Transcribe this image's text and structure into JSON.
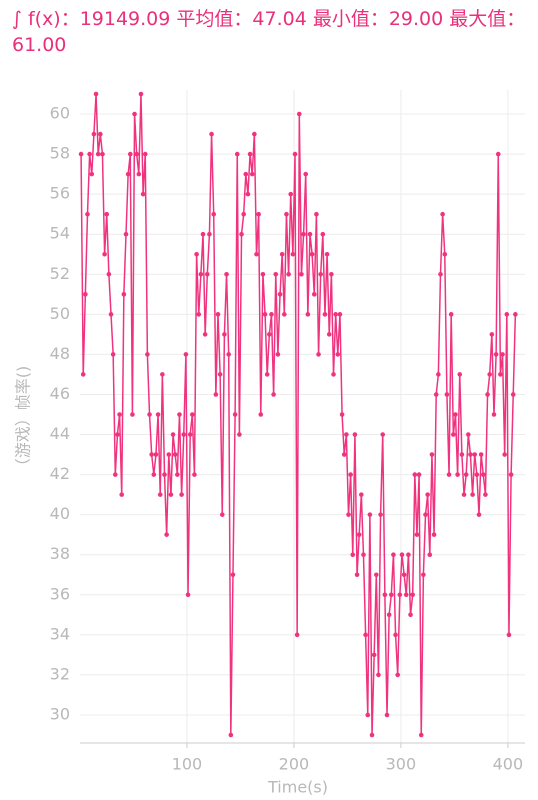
{
  "chart_data": {
    "type": "line",
    "title": "∫ f(x)：19149.09  平均值：47.04  最小值：29.00  最大值：61.00",
    "x_label": "Time(s)",
    "y_label": "（游戏）帧率()",
    "grid": true,
    "series": [
      {
        "name": "（游戏）帧率",
        "color": "#f0337f",
        "x": [
          1,
          3,
          5,
          7,
          9,
          11,
          13,
          15,
          17,
          19,
          21,
          23,
          25,
          27,
          29,
          31,
          33,
          35,
          37,
          39,
          41,
          43,
          45,
          47,
          49,
          51,
          53,
          55,
          57,
          59,
          61,
          63,
          65,
          67,
          69,
          71,
          73,
          75,
          77,
          79,
          81,
          83,
          85,
          87,
          89,
          91,
          93,
          95,
          97,
          99,
          101,
          103,
          105,
          107,
          109,
          111,
          113,
          115,
          117,
          119,
          121,
          123,
          125,
          127,
          129,
          131,
          133,
          135,
          137,
          139,
          141,
          143,
          145,
          147,
          149,
          151,
          153,
          155,
          157,
          159,
          161,
          163,
          165,
          167,
          169,
          171,
          173,
          175,
          177,
          179,
          181,
          183,
          185,
          187,
          189,
          191,
          193,
          195,
          197,
          199,
          201,
          203,
          205,
          207,
          209,
          211,
          213,
          215,
          217,
          219,
          221,
          223,
          225,
          227,
          229,
          231,
          233,
          235,
          237,
          239,
          241,
          243,
          245,
          247,
          249,
          251,
          253,
          255,
          257,
          259,
          261,
          263,
          265,
          267,
          269,
          271,
          273,
          275,
          277,
          279,
          281,
          283,
          285,
          287,
          289,
          291,
          293,
          295,
          297,
          299,
          301,
          303,
          305,
          307,
          309,
          311,
          313,
          315,
          317,
          319,
          321,
          323,
          325,
          327,
          329,
          331,
          333,
          335,
          337,
          339,
          341,
          343,
          345,
          347,
          349,
          351,
          353,
          355,
          357,
          359,
          361,
          363,
          365,
          367,
          369,
          371,
          373,
          375,
          377,
          379,
          381,
          383,
          385,
          387,
          389,
          391,
          393,
          395,
          397,
          399,
          401,
          403,
          405,
          407
        ],
        "values": [
          58,
          47,
          51,
          55,
          58,
          57,
          59,
          61,
          58,
          59,
          58,
          53,
          55,
          52,
          50,
          48,
          42,
          44,
          45,
          41,
          51,
          54,
          57,
          58,
          45,
          60,
          58,
          57,
          61,
          56,
          58,
          48,
          45,
          43,
          42,
          43,
          45,
          41,
          47,
          42,
          39,
          43,
          41,
          44,
          43,
          42,
          45,
          41,
          44,
          48,
          36,
          44,
          45,
          42,
          53,
          50,
          52,
          54,
          49,
          52,
          54,
          59,
          55,
          46,
          50,
          47,
          40,
          49,
          52,
          48,
          29,
          37,
          45,
          58,
          44,
          54,
          55,
          57,
          56,
          58,
          57,
          59,
          53,
          55,
          45,
          52,
          50,
          47,
          49,
          50,
          46,
          52,
          48,
          51,
          53,
          50,
          55,
          52,
          56,
          53,
          58,
          34,
          60,
          52,
          54,
          57,
          50,
          54,
          53,
          51,
          55,
          48,
          52,
          54,
          50,
          53,
          49,
          52,
          47,
          50,
          48,
          50,
          45,
          43,
          44,
          40,
          42,
          38,
          44,
          37,
          39,
          41,
          38,
          34,
          30,
          40,
          29,
          33,
          37,
          32,
          40,
          44,
          36,
          30,
          35,
          36,
          38,
          34,
          32,
          36,
          38,
          37,
          36,
          38,
          35,
          36,
          42,
          39,
          42,
          29,
          37,
          40,
          41,
          38,
          43,
          39,
          46,
          47,
          52,
          55,
          53,
          46,
          42,
          50,
          44,
          45,
          42,
          47,
          43,
          41,
          42,
          44,
          43,
          41,
          43,
          42,
          40,
          43,
          42,
          41,
          46,
          47,
          49,
          45,
          48,
          58,
          47,
          48,
          43,
          50,
          34,
          42,
          46,
          50
        ]
      }
    ],
    "xlim": [
      0,
      416
    ],
    "xticks": [
      100,
      200,
      300,
      400
    ],
    "ylim": [
      28.6,
      61.2
    ],
    "yticks": [
      30,
      32,
      34,
      36,
      38,
      40,
      42,
      44,
      46,
      48,
      50,
      52,
      54,
      56,
      58,
      60
    ]
  }
}
